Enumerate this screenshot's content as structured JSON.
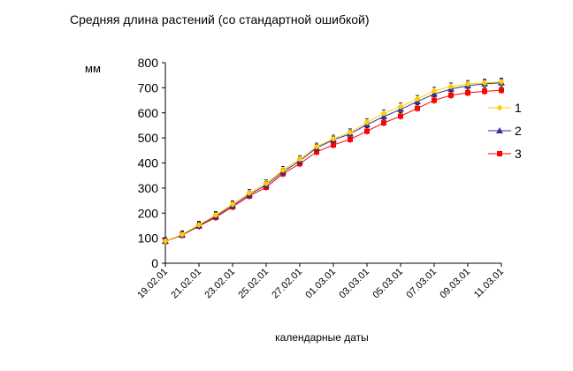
{
  "chart_data": {
    "type": "line",
    "title": "Средняя длина растений (со стандартной ошибкой)",
    "ylabel": "мм",
    "xlabel": "календарные даты",
    "ylim": [
      0,
      800
    ],
    "y_ticks": [
      0,
      100,
      200,
      300,
      400,
      500,
      600,
      700,
      800
    ],
    "x_tick_labels": [
      "19.02.01",
      "21.02.01",
      "23.02.01",
      "25.02.01",
      "27.02.01",
      "01.03.01",
      "03.03.01",
      "05.03.01",
      "07.03.01",
      "09.03.01",
      "11.03.01"
    ],
    "grid": false,
    "legend_position": "right",
    "error_bars": true,
    "series": [
      {
        "name": "1",
        "color": "#FFCC00",
        "marker": "diamond",
        "values": [
          88,
          115,
          153,
          192,
          235,
          280,
          318,
          372,
          415,
          465,
          497,
          522,
          562,
          598,
          625,
          655,
          688,
          705,
          715,
          720,
          724
        ]
      },
      {
        "name": "2",
        "color": "#333399",
        "marker": "triangle",
        "values": [
          88,
          113,
          150,
          188,
          230,
          274,
          312,
          365,
          408,
          460,
          492,
          516,
          553,
          585,
          614,
          645,
          675,
          695,
          708,
          716,
          720
        ]
      },
      {
        "name": "3",
        "color": "#FF0000",
        "marker": "square",
        "values": [
          87,
          112,
          148,
          183,
          225,
          268,
          303,
          357,
          397,
          444,
          472,
          494,
          527,
          560,
          587,
          618,
          650,
          670,
          680,
          686,
          690
        ]
      }
    ]
  }
}
